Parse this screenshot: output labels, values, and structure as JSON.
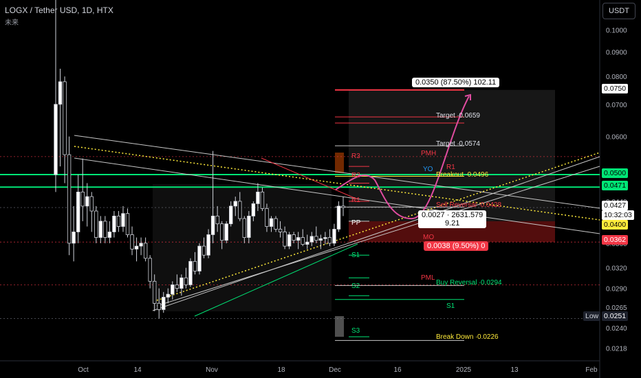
{
  "header": {
    "title": "LOGX / Tether USD, 1D, HTX",
    "subtitle": "未来",
    "currency": "USDT"
  },
  "colors": {
    "up": "#e0e3eb",
    "down": "#e0e3eb",
    "green": "#00e676",
    "red": "#f23645",
    "yellow": "#ffeb3b",
    "pink": "#e91e63",
    "magenta": "#e04ca0"
  },
  "price_axis": {
    "ticks": [
      "0.1000",
      "0.0900",
      "0.0800",
      "0.0700",
      "0.0600",
      "0.0500",
      "0.0440",
      "0.0400",
      "0.0360",
      "0.0320",
      "0.0290",
      "0.0265",
      "0.0240",
      "0.0218"
    ],
    "tags": {
      "target_high": "0.0750",
      "level_high": "0.0500",
      "level_mid": "0.0471",
      "last": "0.0427",
      "countdown": "10:32:03",
      "level_low": "0.0400",
      "stop": "0.0362",
      "low_label": "Low",
      "low_value": "0.0251"
    }
  },
  "time_axis": {
    "ticks": [
      "Oct",
      "14",
      "Nov",
      "18",
      "Dec",
      "16",
      "2025",
      "13",
      "Feb"
    ]
  },
  "annotations": {
    "target_box": "0.0350 (87.50%) 102.11",
    "stop_box": "0.0038 (9.50%) 0",
    "current_box_line1": "0.0027 · 2631.579",
    "current_box_line2": "9.21",
    "labels": {
      "r3_top": "R3",
      "target1": "Target ∙0.0659",
      "target2": "Target ∙0.0574",
      "pmh": "PMH",
      "r3": "R3",
      "r2": "R2",
      "r1": "R1",
      "r1_right": "R1",
      "yo": "YO",
      "breakout": "Breakout ∙0.0496",
      "sell_reversal": "Sell Reversal ∙0.0428",
      "pp": "PP",
      "mo": "MO",
      "s1": "S1",
      "s1_right": "S1",
      "pml": "PML",
      "buy_reversal": "Buy Reversal ∙0.0294",
      "s2": "S2",
      "s3": "S3",
      "breakdown": "Break Down ∙0.0226"
    }
  },
  "chart_data": {
    "type": "candlestick",
    "title": "LOGX / Tether USD, 1D, HTX",
    "scale": "log",
    "ylim": [
      0.0205,
      0.108
    ],
    "candles": [
      [
        0.05,
        0.17,
        0.046,
        0.07
      ],
      [
        0.07,
        0.083,
        0.052,
        0.078
      ],
      [
        0.078,
        0.08,
        0.048,
        0.055
      ],
      [
        0.055,
        0.06,
        0.034,
        0.036
      ],
      [
        0.036,
        0.043,
        0.033,
        0.038
      ],
      [
        0.038,
        0.05,
        0.036,
        0.046
      ],
      [
        0.046,
        0.054,
        0.04,
        0.043
      ],
      [
        0.043,
        0.048,
        0.039,
        0.045
      ],
      [
        0.045,
        0.046,
        0.038,
        0.042
      ],
      [
        0.042,
        0.043,
        0.036,
        0.037
      ],
      [
        0.037,
        0.041,
        0.036,
        0.04
      ],
      [
        0.04,
        0.041,
        0.036,
        0.037
      ],
      [
        0.037,
        0.04,
        0.036,
        0.038
      ],
      [
        0.038,
        0.042,
        0.037,
        0.041
      ],
      [
        0.041,
        0.042,
        0.038,
        0.039
      ],
      [
        0.039,
        0.043,
        0.038,
        0.0415
      ],
      [
        0.0415,
        0.0425,
        0.037,
        0.0375
      ],
      [
        0.0375,
        0.039,
        0.034,
        0.035
      ],
      [
        0.035,
        0.037,
        0.033,
        0.0355
      ],
      [
        0.0355,
        0.037,
        0.034,
        0.036
      ],
      [
        0.036,
        0.037,
        0.033,
        0.0335
      ],
      [
        0.0335,
        0.034,
        0.029,
        0.03
      ],
      [
        0.03,
        0.031,
        0.026,
        0.027
      ],
      [
        0.027,
        0.029,
        0.0251,
        0.0262
      ],
      [
        0.0262,
        0.0285,
        0.0258,
        0.0278
      ],
      [
        0.0278,
        0.029,
        0.027,
        0.0282
      ],
      [
        0.0282,
        0.03,
        0.0275,
        0.0295
      ],
      [
        0.0295,
        0.031,
        0.0285,
        0.029
      ],
      [
        0.029,
        0.031,
        0.028,
        0.0305
      ],
      [
        0.0305,
        0.032,
        0.029,
        0.0295
      ],
      [
        0.0295,
        0.0335,
        0.0292,
        0.033
      ],
      [
        0.033,
        0.0345,
        0.031,
        0.0315
      ],
      [
        0.0315,
        0.036,
        0.031,
        0.0355
      ],
      [
        0.0355,
        0.037,
        0.0335,
        0.034
      ],
      [
        0.034,
        0.0385,
        0.0335,
        0.0375
      ],
      [
        0.0375,
        0.056,
        0.036,
        0.041
      ],
      [
        0.041,
        0.043,
        0.038,
        0.0395
      ],
      [
        0.0395,
        0.04,
        0.035,
        0.0365
      ],
      [
        0.0365,
        0.04,
        0.036,
        0.0395
      ],
      [
        0.0395,
        0.044,
        0.039,
        0.043
      ],
      [
        0.043,
        0.045,
        0.041,
        0.044
      ],
      [
        0.044,
        0.046,
        0.04,
        0.0405
      ],
      [
        0.0405,
        0.041,
        0.036,
        0.037
      ],
      [
        0.037,
        0.042,
        0.036,
        0.041
      ],
      [
        0.041,
        0.044,
        0.04,
        0.0435
      ],
      [
        0.0435,
        0.048,
        0.042,
        0.046
      ],
      [
        0.046,
        0.047,
        0.042,
        0.0425
      ],
      [
        0.0425,
        0.0435,
        0.038,
        0.039
      ],
      [
        0.039,
        0.041,
        0.038,
        0.0405
      ],
      [
        0.0405,
        0.041,
        0.038,
        0.0385
      ],
      [
        0.0385,
        0.04,
        0.037,
        0.038
      ],
      [
        0.038,
        0.039,
        0.035,
        0.0355
      ],
      [
        0.0355,
        0.038,
        0.035,
        0.0375
      ],
      [
        0.0375,
        0.038,
        0.036,
        0.0365
      ],
      [
        0.0365,
        0.038,
        0.035,
        0.037
      ],
      [
        0.037,
        0.0385,
        0.0355,
        0.0358
      ],
      [
        0.0358,
        0.0375,
        0.035,
        0.0362
      ],
      [
        0.0362,
        0.038,
        0.0355,
        0.0372
      ],
      [
        0.0372,
        0.039,
        0.036,
        0.0365
      ],
      [
        0.0365,
        0.0375,
        0.035,
        0.0368
      ],
      [
        0.0368,
        0.038,
        0.0358,
        0.037
      ],
      [
        0.037,
        0.0385,
        0.0355,
        0.036
      ],
      [
        0.036,
        0.0395,
        0.0355,
        0.0385
      ],
      [
        0.0385,
        0.044,
        0.038,
        0.043
      ],
      [
        0.043,
        0.045,
        0.041,
        0.0427
      ]
    ],
    "time_ticks": [
      "Oct",
      "14",
      "Nov",
      "18",
      "Dec",
      "16",
      "2025",
      "13",
      "Feb"
    ],
    "price_ticks": [
      "0.1000",
      "0.0900",
      "0.0800",
      "0.0700",
      "0.0600",
      "0.0500",
      "0.0440",
      "0.0400",
      "0.0360",
      "0.0320",
      "0.0290",
      "0.0265",
      "0.0240",
      "0.0218"
    ],
    "levels": {
      "target_high": 0.075,
      "target_1": 0.0659,
      "target_2": 0.0574,
      "breakout": 0.0496,
      "sell_reversal": 0.0428,
      "buy_reversal": 0.0294,
      "break_down": 0.0226,
      "stop": 0.0362,
      "last": 0.0427,
      "low": 0.0251
    },
    "grid": false
  }
}
